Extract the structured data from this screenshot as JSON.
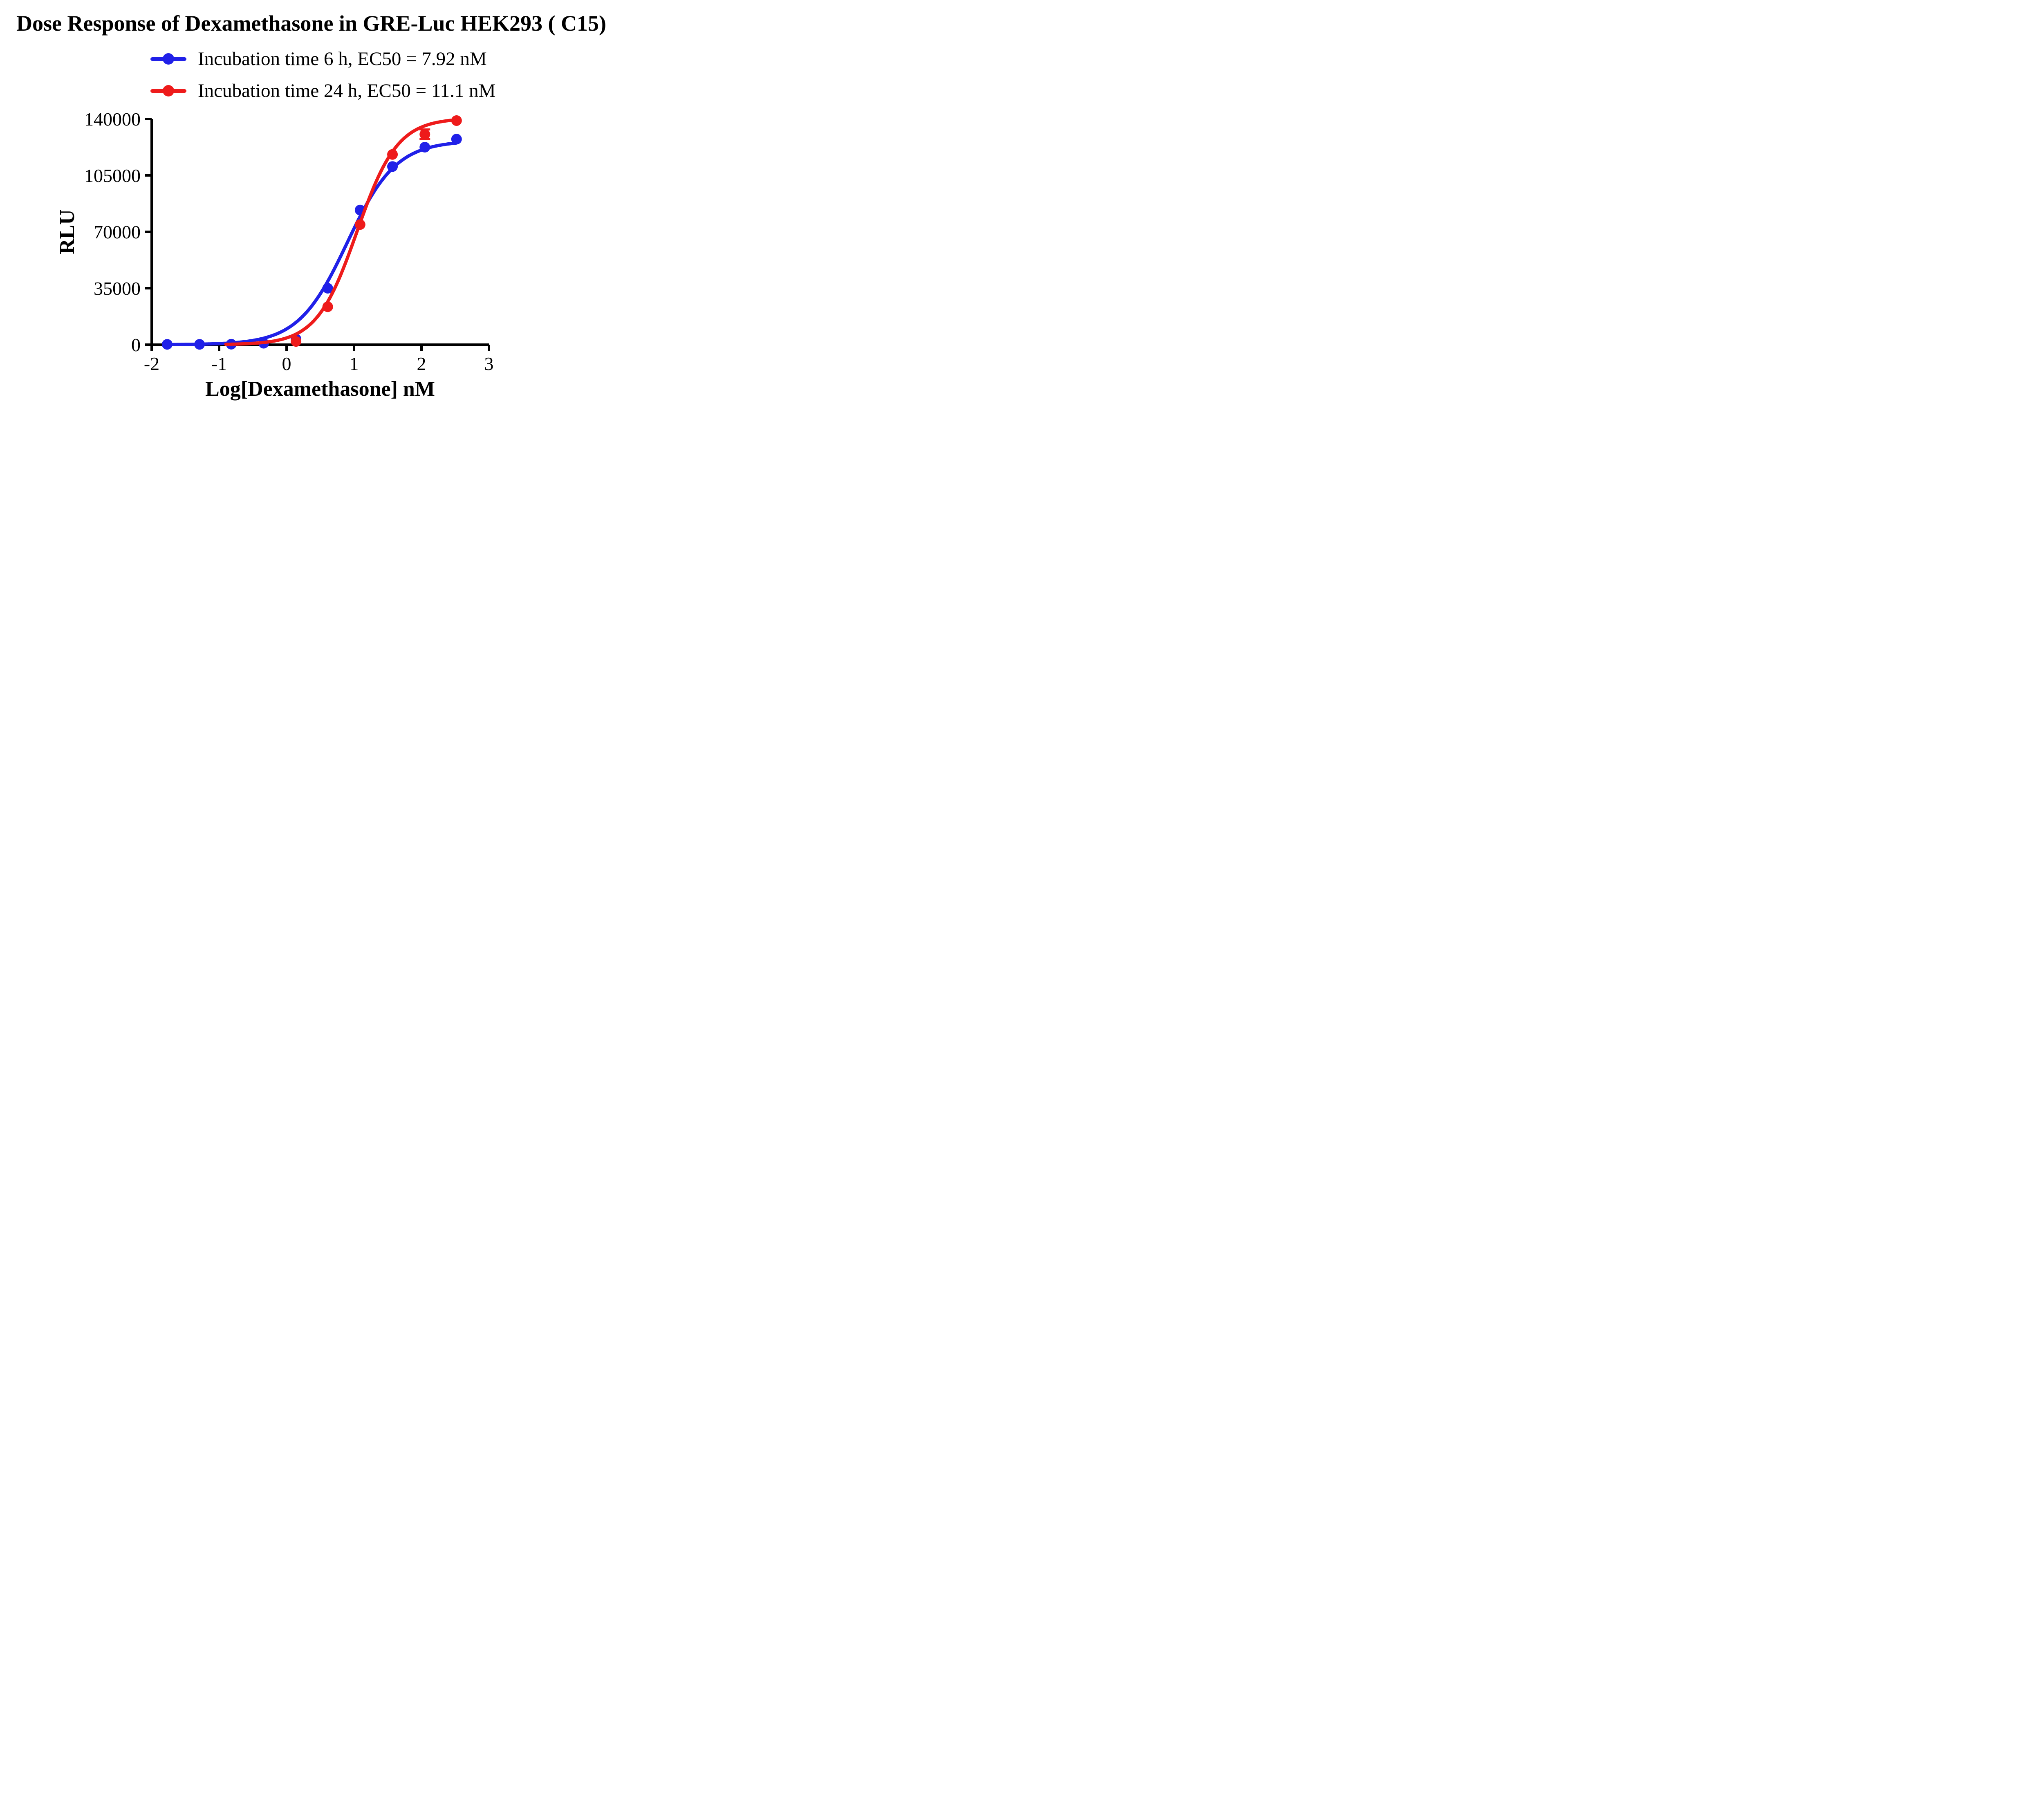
{
  "chart_data": {
    "type": "scatter-line-dose-response",
    "title": "Dose Response of Dexamethasone in GRE-Luc HEK293 ( C15)",
    "xlabel": "Log[Dexamethasone] nM",
    "ylabel": "RLU",
    "xlim": [
      -2,
      3
    ],
    "ylim": [
      0,
      140000
    ],
    "xticks": [
      -2,
      -1,
      0,
      1,
      2,
      3
    ],
    "yticks": [
      0,
      35000,
      70000,
      105000,
      140000
    ],
    "grid": false,
    "legend_position": "top",
    "series": [
      {
        "name": "Incubation time 6 h,  EC50 = 7.92 nM",
        "color": "#2020e8",
        "ec50_nM": 7.92,
        "x": [
          -1.77,
          -1.29,
          -0.82,
          -0.34,
          0.14,
          0.61,
          1.09,
          1.57,
          2.05,
          2.52
        ],
        "y": [
          200,
          200,
          300,
          900,
          3500,
          35000,
          83500,
          110500,
          122500,
          127500
        ],
        "yerr": [
          0,
          0,
          0,
          0,
          0,
          0,
          0,
          0,
          0,
          0
        ],
        "fit": {
          "bottom": 0,
          "top": 126500,
          "logEC50": 0.899,
          "hill": 1.2,
          "curve_x_range": [
            -1.78,
            2.52
          ]
        }
      },
      {
        "name": "Incubation time 24 h,  EC50 = 11.1 nM",
        "color": "#ee1b1b",
        "ec50_nM": 11.1,
        "x": [
          0.14,
          0.61,
          1.09,
          1.57,
          2.05,
          2.52
        ],
        "y": [
          2000,
          23500,
          74500,
          118000,
          130500,
          139000
        ],
        "yerr": [
          0,
          0,
          0,
          0,
          3000,
          0
        ],
        "fit": {
          "bottom": 0,
          "top": 140500,
          "logEC50": 1.045,
          "hill": 1.45,
          "curve_x_range": [
            -0.9,
            2.52
          ]
        }
      }
    ]
  }
}
